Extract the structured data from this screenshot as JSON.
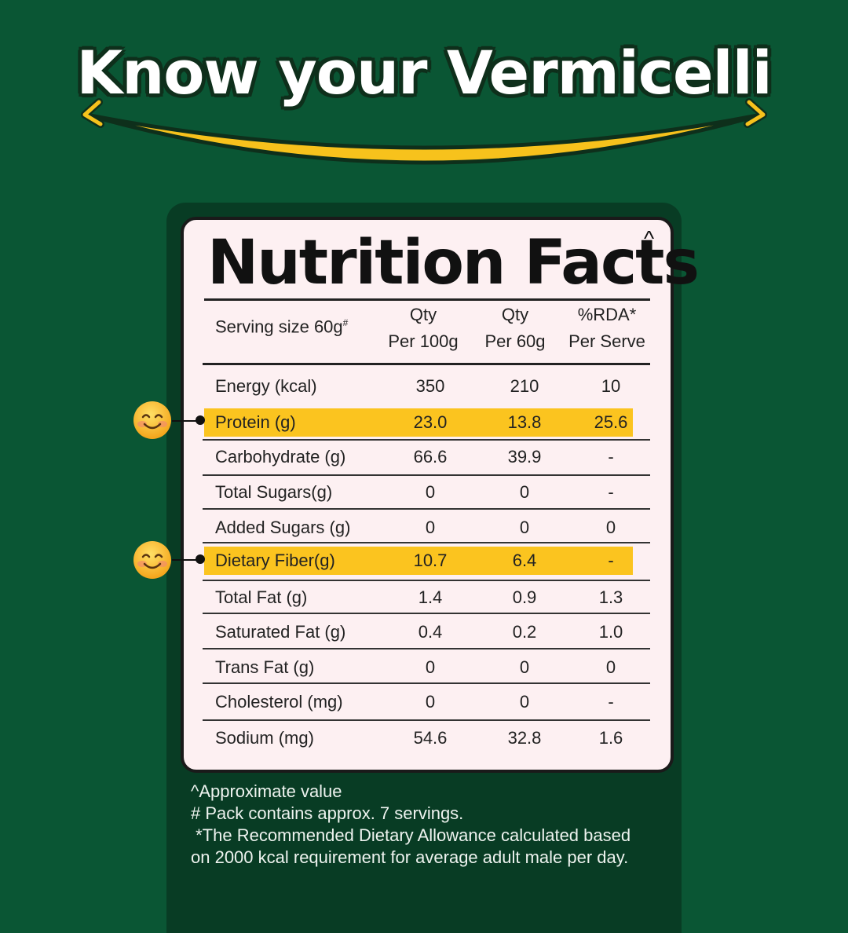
{
  "headline": "Know your Vermicelli",
  "card": {
    "title": "Nutrition Facts",
    "title_mark": "^",
    "header": {
      "serving_label": "Serving size 60g",
      "serving_mark": "#",
      "col1_line1": "Qty",
      "col1_line2": "Per 100g",
      "col2_line1": "Qty",
      "col2_line2": "Per 60g",
      "col3_line1": "%RDA*",
      "col3_line2": "Per Serve"
    },
    "rows": [
      {
        "name": "Energy (kcal)",
        "per100": "350",
        "per60": "210",
        "rda": "10"
      },
      {
        "name": "Protein (g)",
        "per100": "23.0",
        "per60": "13.8",
        "rda": "25.6"
      },
      {
        "name": "Carbohydrate (g)",
        "per100": "66.6",
        "per60": "39.9",
        "rda": "-"
      },
      {
        "name": "Total Sugars(g)",
        "per100": "0",
        "per60": "0",
        "rda": "-"
      },
      {
        "name": "Added Sugars (g)",
        "per100": "0",
        "per60": "0",
        "rda": "0"
      },
      {
        "name": "Dietary Fiber(g)",
        "per100": "10.7",
        "per60": "6.4",
        "rda": "-"
      },
      {
        "name": "Total Fat (g)",
        "per100": "1.4",
        "per60": "0.9",
        "rda": "1.3"
      },
      {
        "name": "Saturated Fat (g)",
        "per100": "0.4",
        "per60": "0.2",
        "rda": "1.0"
      },
      {
        "name": "Trans Fat (g)",
        "per100": "0",
        "per60": "0",
        "rda": "0"
      },
      {
        "name": "Cholesterol (mg)",
        "per100": "0",
        "per60": "0",
        "rda": "-"
      },
      {
        "name": "Sodium (mg)",
        "per100": "54.6",
        "per60": "32.8",
        "rda": "1.6"
      }
    ]
  },
  "notes": {
    "line1": "^Approximate value",
    "line2": "# Pack contains approx. 7 servings.",
    "line3": " *The Recommended Dietary Allowance calculated based",
    "line4": "on 2000 kcal requirement for average adult male per day."
  },
  "colors": {
    "background": "#0a5634",
    "highlight": "#fbc41f",
    "card": "#fdf0f2"
  },
  "icons": [
    "smiling-face-emoji-icon"
  ]
}
